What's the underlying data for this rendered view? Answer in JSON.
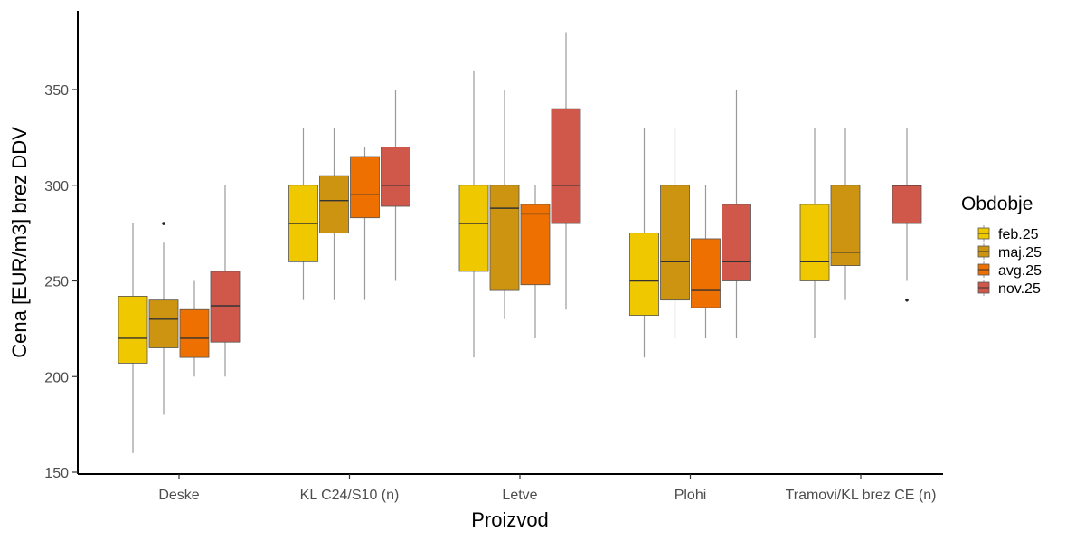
{
  "chart_data": {
    "type": "boxplot",
    "title": "",
    "xlabel": "Proizvod",
    "ylabel": "Cena [EUR/m3] brez DDV",
    "ylim": [
      150,
      385
    ],
    "yticks": [
      150,
      200,
      250,
      300,
      350
    ],
    "categories": [
      "Deske",
      "KL C24/S10 (n)",
      "Letve",
      "Plohi",
      "Tramovi/KL brez CE (n)"
    ],
    "legend": {
      "title": "Obdobje",
      "position": "right"
    },
    "series": [
      {
        "name": "feb.25",
        "color": "#F0C800",
        "boxes": [
          {
            "category": "Deske",
            "min": 160,
            "q1": 207,
            "median": 220,
            "q3": 242,
            "max": 280,
            "outliers": []
          },
          {
            "category": "KL C24/S10 (n)",
            "min": 240,
            "q1": 260,
            "median": 280,
            "q3": 300,
            "max": 330,
            "outliers": []
          },
          {
            "category": "Letve",
            "min": 210,
            "q1": 255,
            "median": 280,
            "q3": 300,
            "max": 360,
            "outliers": []
          },
          {
            "category": "Plohi",
            "min": 210,
            "q1": 232,
            "median": 250,
            "q3": 275,
            "max": 330,
            "outliers": []
          },
          {
            "category": "Tramovi/KL brez CE (n)",
            "min": 220,
            "q1": 250,
            "median": 260,
            "q3": 290,
            "max": 330,
            "outliers": []
          }
        ]
      },
      {
        "name": "maj.25",
        "color": "#CC9410",
        "boxes": [
          {
            "category": "Deske",
            "min": 180,
            "q1": 215,
            "median": 230,
            "q3": 240,
            "max": 270,
            "outliers": [
              280
            ]
          },
          {
            "category": "KL C24/S10 (n)",
            "min": 240,
            "q1": 275,
            "median": 292,
            "q3": 305,
            "max": 330,
            "outliers": []
          },
          {
            "category": "Letve",
            "min": 230,
            "q1": 245,
            "median": 288,
            "q3": 300,
            "max": 350,
            "outliers": []
          },
          {
            "category": "Plohi",
            "min": 220,
            "q1": 240,
            "median": 260,
            "q3": 300,
            "max": 330,
            "outliers": []
          },
          {
            "category": "Tramovi/KL brez CE (n)",
            "min": 240,
            "q1": 258,
            "median": 265,
            "q3": 300,
            "max": 330,
            "outliers": []
          }
        ]
      },
      {
        "name": "avg.25",
        "color": "#EE7000",
        "boxes": [
          {
            "category": "Deske",
            "min": 200,
            "q1": 210,
            "median": 220,
            "q3": 235,
            "max": 250,
            "outliers": []
          },
          {
            "category": "KL C24/S10 (n)",
            "min": 240,
            "q1": 283,
            "median": 295,
            "q3": 315,
            "max": 320,
            "outliers": []
          },
          {
            "category": "Letve",
            "min": 220,
            "q1": 248,
            "median": 285,
            "q3": 290,
            "max": 300,
            "outliers": []
          },
          {
            "category": "Plohi",
            "min": 220,
            "q1": 236,
            "median": 245,
            "q3": 272,
            "max": 300,
            "outliers": []
          }
        ]
      },
      {
        "name": "nov.25",
        "color": "#D0584A",
        "boxes": [
          {
            "category": "Deske",
            "min": 200,
            "q1": 218,
            "median": 237,
            "q3": 255,
            "max": 300,
            "outliers": []
          },
          {
            "category": "KL C24/S10 (n)",
            "min": 250,
            "q1": 289,
            "median": 300,
            "q3": 320,
            "max": 350,
            "outliers": []
          },
          {
            "category": "Letve",
            "min": 235,
            "q1": 280,
            "median": 300,
            "q3": 340,
            "max": 380,
            "outliers": []
          },
          {
            "category": "Plohi",
            "min": 220,
            "q1": 250,
            "median": 260,
            "q3": 290,
            "max": 350,
            "outliers": []
          },
          {
            "category": "Tramovi/KL brez CE (n)",
            "min": 250,
            "q1": 280,
            "median": 300,
            "q3": 300,
            "max": 330,
            "outliers": [
              240
            ]
          }
        ]
      }
    ]
  }
}
